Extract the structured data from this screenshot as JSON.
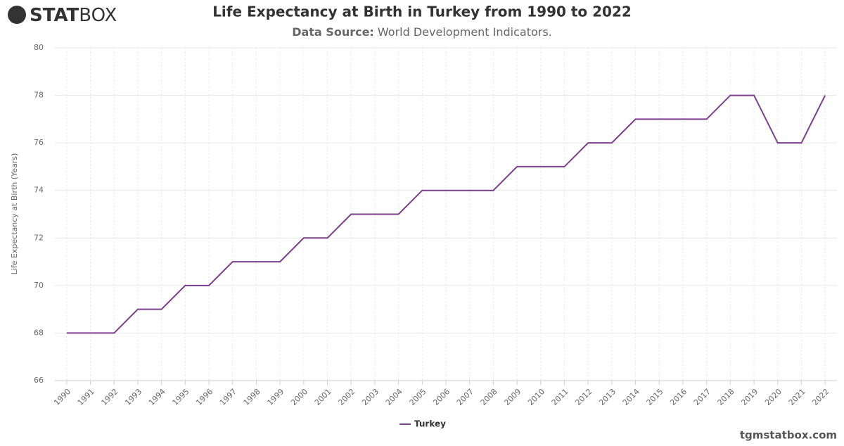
{
  "logo": [
    "STAT",
    "BOX"
  ],
  "footer": "tgmstatbox.com",
  "chart_data": {
    "type": "line",
    "title": "Life Expectancy at Birth in Turkey from 1990 to 2022",
    "subtitle_label": "Data Source:",
    "subtitle": "World Development Indicators.",
    "y_label": "Life Expectancy at Birth (Years)",
    "x": [
      1990,
      1991,
      1992,
      1993,
      1994,
      1995,
      1996,
      1997,
      1998,
      1999,
      2000,
      2001,
      2002,
      2003,
      2004,
      2005,
      2006,
      2007,
      2008,
      2009,
      2010,
      2011,
      2012,
      2013,
      2014,
      2015,
      2016,
      2017,
      2018,
      2019,
      2020,
      2021,
      2022
    ],
    "series": [
      {
        "name": "Turkey",
        "color": "#7b3f8c",
        "values": [
          68,
          68,
          68,
          69,
          69,
          70,
          70,
          71,
          71,
          71,
          72,
          72,
          73,
          73,
          73,
          74,
          74,
          74,
          74,
          75,
          75,
          75,
          76,
          76,
          77,
          77,
          77,
          77,
          78,
          78,
          76,
          76,
          78
        ]
      }
    ],
    "xlim": [
      1989.5,
      2022.5
    ],
    "xticks": [
      1990,
      1991,
      1992,
      1993,
      1994,
      1995,
      1996,
      1997,
      1998,
      1999,
      2000,
      2001,
      2002,
      2003,
      2004,
      2005,
      2006,
      2007,
      2008,
      2009,
      2010,
      2011,
      2012,
      2013,
      2014,
      2015,
      2016,
      2017,
      2018,
      2019,
      2020,
      2021,
      2022
    ],
    "ylim": [
      66,
      80
    ],
    "yticks": [
      66,
      68,
      70,
      72,
      74,
      76,
      78,
      80
    ],
    "grid": true,
    "legend": "bottom"
  }
}
